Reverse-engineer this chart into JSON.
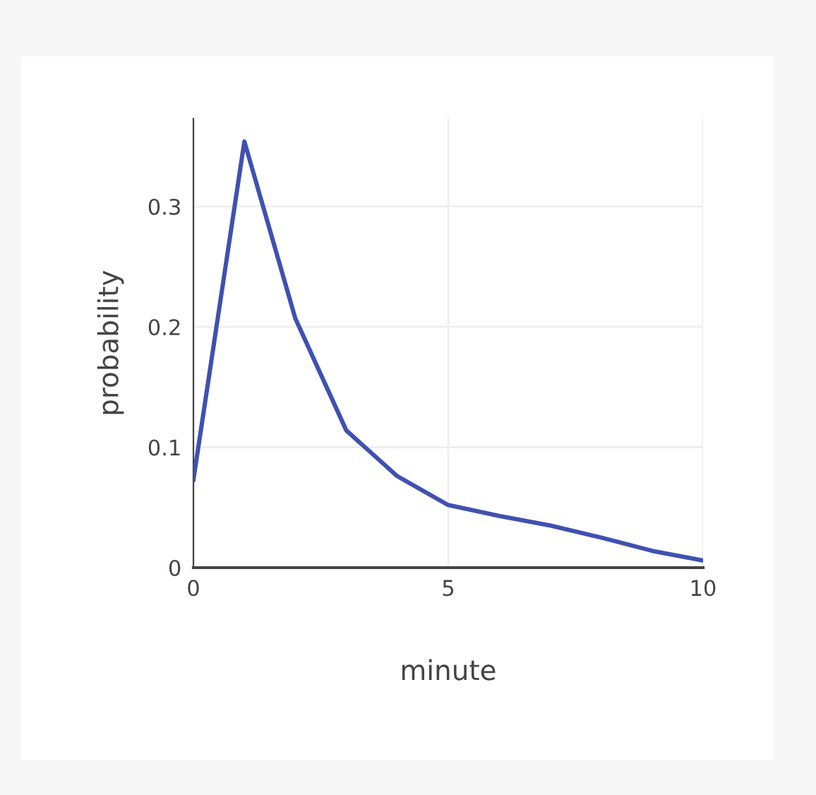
{
  "chart_data": {
    "type": "line",
    "xlabel": "minute",
    "ylabel": "probability",
    "x": [
      0,
      1,
      2,
      3,
      4,
      5,
      6,
      7,
      8,
      9,
      10
    ],
    "series": [
      {
        "color": "#3f51b0",
        "values": [
          0.073,
          0.354,
          0.207,
          0.114,
          0.076,
          0.052,
          0.043,
          0.035,
          0.025,
          0.014,
          0.006
        ]
      }
    ],
    "xlim": [
      0,
      10
    ],
    "ylim": [
      0,
      0.373
    ],
    "xticks": [
      0,
      5,
      10
    ],
    "yticks": [
      0,
      0.1,
      0.2,
      0.3
    ],
    "grid": true,
    "marker": "none",
    "line_style": "solid"
  }
}
